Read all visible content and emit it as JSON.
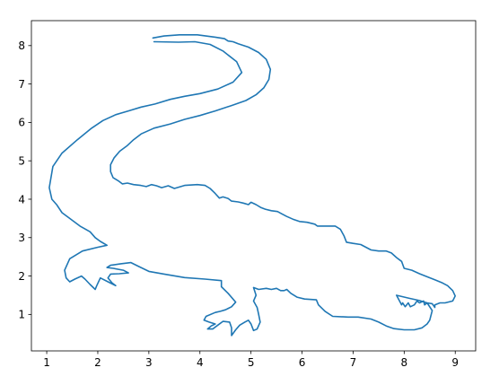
{
  "chart_data": {
    "type": "line",
    "title": "",
    "xlabel": "",
    "ylabel": "",
    "xlim": [
      0.7,
      9.4
    ],
    "ylim": [
      0.05,
      8.65
    ],
    "grid": false,
    "xticks": [
      "1",
      "2",
      "3",
      "4",
      "5",
      "6",
      "7",
      "8",
      "9"
    ],
    "yticks": [
      "1",
      "2",
      "3",
      "4",
      "5",
      "6",
      "7",
      "8"
    ],
    "series": [
      {
        "color": "#1f77b4",
        "points": [
          [
            3.08,
            8.2
          ],
          [
            3.3,
            8.25
          ],
          [
            3.6,
            8.28
          ],
          [
            3.95,
            8.28
          ],
          [
            4.3,
            8.22
          ],
          [
            4.48,
            8.18
          ],
          [
            4.55,
            8.12
          ],
          [
            4.65,
            8.1
          ],
          [
            4.75,
            8.05
          ],
          [
            4.95,
            7.96
          ],
          [
            5.15,
            7.82
          ],
          [
            5.3,
            7.64
          ],
          [
            5.38,
            7.38
          ],
          [
            5.35,
            7.12
          ],
          [
            5.25,
            6.9
          ],
          [
            5.1,
            6.72
          ],
          [
            4.9,
            6.57
          ],
          [
            4.62,
            6.44
          ],
          [
            4.3,
            6.3
          ],
          [
            4.0,
            6.18
          ],
          [
            3.7,
            6.08
          ],
          [
            3.42,
            5.96
          ],
          [
            3.1,
            5.85
          ],
          [
            2.85,
            5.7
          ],
          [
            2.7,
            5.55
          ],
          [
            2.58,
            5.4
          ],
          [
            2.43,
            5.25
          ],
          [
            2.32,
            5.08
          ],
          [
            2.25,
            4.9
          ],
          [
            2.25,
            4.72
          ],
          [
            2.3,
            4.56
          ],
          [
            2.4,
            4.48
          ],
          [
            2.48,
            4.4
          ],
          [
            2.58,
            4.42
          ],
          [
            2.7,
            4.38
          ],
          [
            2.84,
            4.36
          ],
          [
            2.95,
            4.33
          ],
          [
            3.05,
            4.38
          ],
          [
            3.15,
            4.35
          ],
          [
            3.25,
            4.3
          ],
          [
            3.38,
            4.35
          ],
          [
            3.5,
            4.28
          ],
          [
            3.7,
            4.36
          ],
          [
            3.95,
            4.38
          ],
          [
            4.1,
            4.36
          ],
          [
            4.2,
            4.28
          ],
          [
            4.3,
            4.15
          ],
          [
            4.38,
            4.03
          ],
          [
            4.45,
            4.06
          ],
          [
            4.55,
            4.02
          ],
          [
            4.62,
            3.95
          ],
          [
            4.75,
            3.93
          ],
          [
            4.85,
            3.9
          ],
          [
            4.95,
            3.86
          ],
          [
            5.0,
            3.92
          ],
          [
            5.1,
            3.86
          ],
          [
            5.2,
            3.78
          ],
          [
            5.28,
            3.74
          ],
          [
            5.4,
            3.7
          ],
          [
            5.52,
            3.68
          ],
          [
            5.6,
            3.62
          ],
          [
            5.7,
            3.55
          ],
          [
            5.82,
            3.48
          ],
          [
            5.95,
            3.42
          ],
          [
            6.1,
            3.4
          ],
          [
            6.25,
            3.35
          ],
          [
            6.3,
            3.3
          ],
          [
            6.5,
            3.3
          ],
          [
            6.65,
            3.3
          ],
          [
            6.75,
            3.22
          ],
          [
            6.82,
            3.05
          ],
          [
            6.87,
            2.88
          ],
          [
            7.0,
            2.85
          ],
          [
            7.15,
            2.82
          ],
          [
            7.25,
            2.75
          ],
          [
            7.35,
            2.68
          ],
          [
            7.5,
            2.65
          ],
          [
            7.65,
            2.65
          ],
          [
            7.75,
            2.6
          ],
          [
            7.85,
            2.48
          ],
          [
            7.95,
            2.38
          ],
          [
            8.0,
            2.2
          ],
          [
            8.15,
            2.15
          ],
          [
            8.3,
            2.06
          ],
          [
            8.45,
            1.98
          ],
          [
            8.6,
            1.9
          ],
          [
            8.75,
            1.82
          ],
          [
            8.85,
            1.75
          ],
          [
            8.95,
            1.62
          ],
          [
            9.0,
            1.48
          ],
          [
            8.95,
            1.35
          ],
          [
            8.8,
            1.3
          ],
          [
            8.7,
            1.3
          ],
          [
            8.6,
            1.25
          ],
          [
            8.6,
            1.18
          ],
          [
            8.55,
            1.28
          ],
          [
            8.45,
            1.3
          ],
          [
            8.4,
            1.25
          ],
          [
            8.38,
            1.35
          ],
          [
            8.3,
            1.3
          ],
          [
            8.25,
            1.35
          ],
          [
            8.2,
            1.25
          ],
          [
            8.12,
            1.2
          ],
          [
            8.08,
            1.3
          ],
          [
            8.02,
            1.2
          ],
          [
            7.97,
            1.3
          ],
          [
            7.95,
            1.25
          ],
          [
            7.85,
            1.5
          ],
          [
            8.1,
            1.42
          ],
          [
            8.3,
            1.36
          ],
          [
            8.45,
            1.3
          ],
          [
            8.55,
            1.1
          ],
          [
            8.5,
            0.85
          ],
          [
            8.45,
            0.75
          ],
          [
            8.35,
            0.65
          ],
          [
            8.2,
            0.6
          ],
          [
            8.0,
            0.6
          ],
          [
            7.8,
            0.63
          ],
          [
            7.65,
            0.7
          ],
          [
            7.5,
            0.8
          ],
          [
            7.35,
            0.88
          ],
          [
            7.1,
            0.93
          ],
          [
            6.9,
            0.93
          ],
          [
            6.6,
            0.95
          ],
          [
            6.45,
            1.08
          ],
          [
            6.32,
            1.25
          ],
          [
            6.28,
            1.38
          ],
          [
            6.05,
            1.4
          ],
          [
            5.9,
            1.45
          ],
          [
            5.78,
            1.55
          ],
          [
            5.7,
            1.65
          ],
          [
            5.65,
            1.62
          ],
          [
            5.58,
            1.62
          ],
          [
            5.5,
            1.68
          ],
          [
            5.4,
            1.65
          ],
          [
            5.3,
            1.68
          ],
          [
            5.15,
            1.65
          ],
          [
            5.05,
            1.7
          ],
          [
            5.1,
            1.5
          ],
          [
            5.05,
            1.35
          ],
          [
            5.12,
            1.18
          ],
          [
            5.15,
            1.0
          ],
          [
            5.18,
            0.8
          ],
          [
            5.12,
            0.62
          ],
          [
            5.05,
            0.58
          ],
          [
            5.0,
            0.75
          ],
          [
            4.95,
            0.85
          ],
          [
            4.88,
            0.8
          ],
          [
            4.78,
            0.72
          ],
          [
            4.7,
            0.6
          ],
          [
            4.62,
            0.45
          ],
          [
            4.62,
            0.65
          ],
          [
            4.58,
            0.8
          ],
          [
            4.45,
            0.82
          ],
          [
            4.35,
            0.72
          ],
          [
            4.25,
            0.62
          ],
          [
            4.15,
            0.62
          ],
          [
            4.22,
            0.7
          ],
          [
            4.3,
            0.75
          ],
          [
            4.18,
            0.8
          ],
          [
            4.08,
            0.85
          ],
          [
            4.12,
            0.95
          ],
          [
            4.3,
            1.05
          ],
          [
            4.4,
            1.08
          ],
          [
            4.5,
            1.12
          ],
          [
            4.62,
            1.2
          ],
          [
            4.7,
            1.32
          ],
          [
            4.55,
            1.55
          ],
          [
            4.42,
            1.72
          ],
          [
            4.42,
            1.88
          ],
          [
            4.1,
            1.92
          ],
          [
            3.7,
            1.96
          ],
          [
            3.3,
            2.05
          ],
          [
            3.0,
            2.12
          ],
          [
            2.8,
            2.25
          ],
          [
            2.65,
            2.35
          ],
          [
            2.45,
            2.32
          ],
          [
            2.25,
            2.28
          ],
          [
            2.18,
            2.22
          ],
          [
            2.3,
            2.2
          ],
          [
            2.5,
            2.15
          ],
          [
            2.6,
            2.08
          ],
          [
            2.42,
            2.06
          ],
          [
            2.25,
            2.05
          ],
          [
            2.2,
            1.95
          ],
          [
            2.28,
            1.82
          ],
          [
            2.35,
            1.75
          ],
          [
            2.2,
            1.85
          ],
          [
            2.05,
            1.95
          ],
          [
            1.98,
            1.75
          ],
          [
            1.95,
            1.65
          ],
          [
            1.85,
            1.78
          ],
          [
            1.75,
            1.92
          ],
          [
            1.68,
            2.0
          ],
          [
            1.55,
            1.92
          ],
          [
            1.45,
            1.85
          ],
          [
            1.38,
            1.95
          ],
          [
            1.35,
            2.15
          ],
          [
            1.45,
            2.45
          ],
          [
            1.7,
            2.65
          ],
          [
            2.0,
            2.75
          ],
          [
            2.18,
            2.8
          ],
          [
            2.05,
            2.9
          ],
          [
            1.95,
            3.0
          ],
          [
            1.85,
            3.15
          ],
          [
            1.65,
            3.3
          ],
          [
            1.45,
            3.5
          ],
          [
            1.3,
            3.65
          ],
          [
            1.2,
            3.85
          ],
          [
            1.1,
            4.0
          ],
          [
            1.05,
            4.3
          ],
          [
            1.12,
            4.85
          ],
          [
            1.3,
            5.2
          ],
          [
            1.6,
            5.55
          ],
          [
            1.88,
            5.85
          ],
          [
            2.1,
            6.05
          ],
          [
            2.35,
            6.2
          ],
          [
            2.6,
            6.3
          ],
          [
            2.85,
            6.4
          ],
          [
            3.12,
            6.48
          ],
          [
            3.42,
            6.6
          ],
          [
            3.7,
            6.68
          ],
          [
            4.0,
            6.75
          ],
          [
            4.35,
            6.87
          ],
          [
            4.65,
            7.05
          ],
          [
            4.82,
            7.3
          ],
          [
            4.72,
            7.58
          ],
          [
            4.45,
            7.86
          ],
          [
            4.2,
            8.03
          ],
          [
            3.9,
            8.1
          ],
          [
            3.58,
            8.09
          ],
          [
            3.1,
            8.1
          ]
        ]
      }
    ]
  }
}
